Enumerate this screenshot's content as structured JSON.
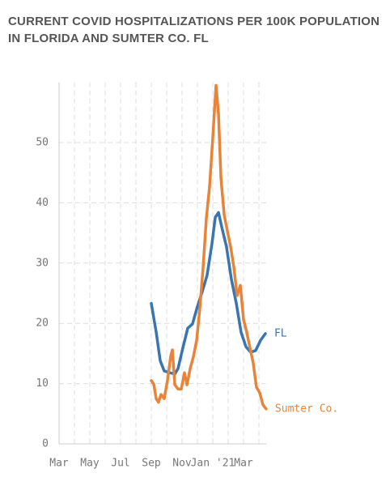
{
  "chart_data": {
    "type": "line",
    "title": "CURRENT COVID HOSPITALIZATIONS PER 100K POPULATION",
    "subtitle": "IN FLORIDA AND SUMTER CO. FL",
    "xlim": [
      0,
      13.5
    ],
    "xticks": [
      {
        "value": 0,
        "label": "Mar"
      },
      {
        "value": 2,
        "label": "May"
      },
      {
        "value": 4,
        "label": "Jul"
      },
      {
        "value": 6,
        "label": "Sep"
      },
      {
        "value": 8,
        "label": "Nov"
      },
      {
        "value": 10,
        "label": "Jan '21"
      },
      {
        "value": 12,
        "label": "Mar"
      }
    ],
    "minor_xticks": [
      1,
      3,
      5,
      7,
      9,
      11,
      13
    ],
    "ylim": [
      0,
      60
    ],
    "yticks": [
      0,
      10,
      20,
      30,
      40,
      50
    ],
    "grid": true,
    "series": [
      {
        "name": "FL",
        "color": "#3a75b0",
        "x": [
          6.0,
          6.32,
          6.58,
          6.84,
          7.21,
          7.53,
          7.74,
          8.05,
          8.37,
          8.68,
          9.0,
          9.32,
          9.63,
          9.95,
          10.16,
          10.37,
          10.58,
          10.89,
          11.21,
          11.53,
          11.84,
          12.16,
          12.47,
          12.79,
          13.11,
          13.42
        ],
        "values": [
          23.3,
          18.5,
          13.8,
          12.1,
          11.8,
          11.6,
          12.5,
          15.9,
          19.2,
          19.9,
          22.8,
          25.3,
          28.0,
          33.3,
          37.6,
          38.4,
          36.0,
          32.7,
          27.3,
          23.3,
          18.5,
          16.1,
          15.2,
          15.5,
          17.2,
          18.3
        ]
      },
      {
        "name": "Sumter Co.",
        "color": "#e8843a",
        "x": [
          6.0,
          6.16,
          6.32,
          6.47,
          6.63,
          6.84,
          7.05,
          7.26,
          7.37,
          7.53,
          7.74,
          7.95,
          8.16,
          8.32,
          8.53,
          8.74,
          8.95,
          9.16,
          9.37,
          9.58,
          9.79,
          10.0,
          10.21,
          10.37,
          10.53,
          10.74,
          10.95,
          11.16,
          11.37,
          11.58,
          11.79,
          12.0,
          12.21,
          12.42,
          12.63,
          12.84,
          13.05,
          13.26,
          13.47
        ],
        "values": [
          10.5,
          9.9,
          7.5,
          6.9,
          8.2,
          7.5,
          10.5,
          14.5,
          15.6,
          9.8,
          9.1,
          9.1,
          11.8,
          9.8,
          12.5,
          14.5,
          17.2,
          22.6,
          29.3,
          37.4,
          42.7,
          50.8,
          59.5,
          54.8,
          44.1,
          38.0,
          35.3,
          32.7,
          29.3,
          24.6,
          26.3,
          20.6,
          18.5,
          15.9,
          13.4,
          9.4,
          8.5,
          6.5,
          5.8
        ]
      }
    ]
  }
}
